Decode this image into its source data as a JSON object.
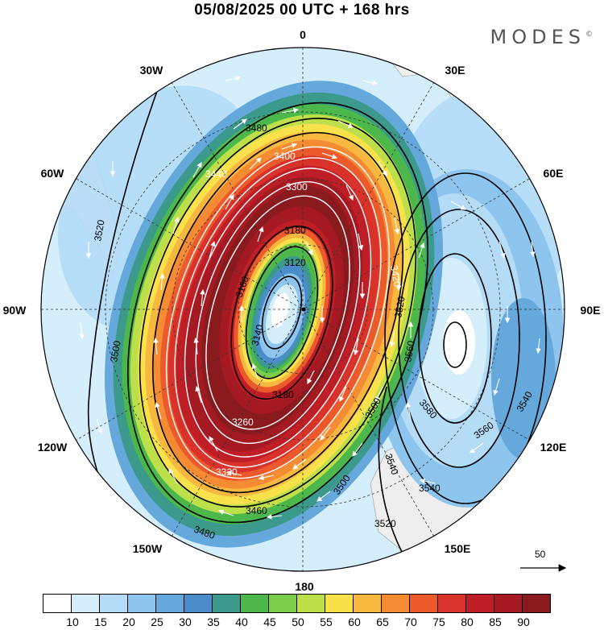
{
  "header": {
    "title": "05/08/2025  00 UTC  + 168 hrs",
    "brand": "MODES",
    "brand_mark": "©"
  },
  "map": {
    "projection": "polar stereographic",
    "longitude_labels": {
      "top": "0",
      "top_right": "30E",
      "right_upper": "60E",
      "right": "90E",
      "right_lower": "120E",
      "bottom_right": "150E",
      "bottom": "180",
      "bottom_left": "150W",
      "left_lower": "120W",
      "left": "90W",
      "left_upper": "60W",
      "top_left": "30W"
    },
    "contour_labels": {
      "c3480a": "3480",
      "c3400": "3400",
      "c3440": "3440",
      "c3300": "3300",
      "c3180a": "3180",
      "c3120": "3120",
      "c3160": "3160",
      "c3140": "3140",
      "c3180b": "3180",
      "c3260": "3260",
      "c3320": "3320",
      "c3460": "3460",
      "c3480b": "3480",
      "c3500a": "3500",
      "c3520a": "3520",
      "c3560a": "3560",
      "c3500b": "3500",
      "c3540": "3540",
      "c3520b": "3520",
      "c3500c": "3500",
      "c3580": "3580",
      "c3560b": "3560",
      "c3540b": "3540",
      "c3540c": "3540",
      "c3520c": "3520",
      "c3420": "3420"
    },
    "reference_vector": "50"
  },
  "colorbar": {
    "colors": [
      "#ffffff",
      "#d5eefc",
      "#b4dcf7",
      "#8ec5ee",
      "#65a8dc",
      "#4a8dca",
      "#3c9a8c",
      "#4cb84c",
      "#7ccc4c",
      "#bde04a",
      "#f8e14a",
      "#f8b840",
      "#f58c34",
      "#ec5a2c",
      "#d8322a",
      "#c01e26",
      "#a51a22",
      "#8b1a1e"
    ],
    "labels": [
      "10",
      "15",
      "20",
      "25",
      "30",
      "35",
      "40",
      "45",
      "50",
      "55",
      "60",
      "65",
      "70",
      "75",
      "80",
      "85",
      "90"
    ]
  }
}
